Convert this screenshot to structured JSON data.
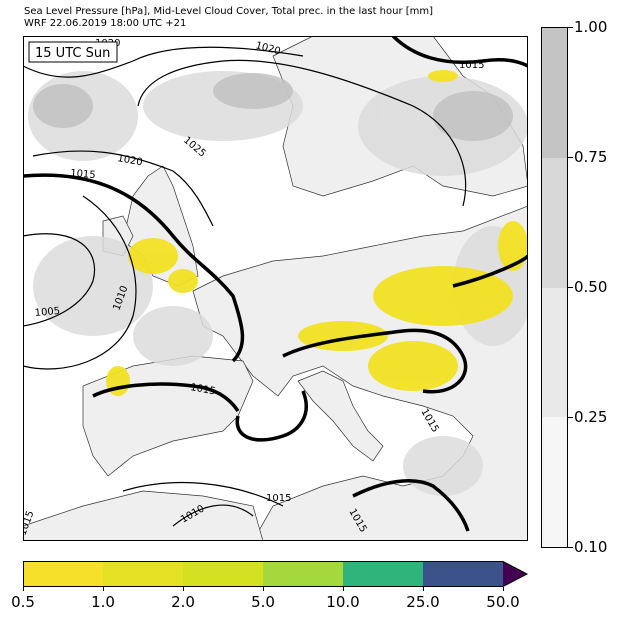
{
  "header": {
    "line1": "Sea Level Pressure [hPa], Mid-Level Cloud Cover, Total prec. in the last hour [mm]",
    "line2": "WRF 22.06.2019 18:00 UTC +21"
  },
  "map": {
    "time_label": "15 UTC Sun",
    "isobar_labels": [
      "1020",
      "1015",
      "1020",
      "1025",
      "1015",
      "1010",
      "1005",
      "1015",
      "1015",
      "1010",
      "1015",
      "1015",
      "1015",
      "1020"
    ],
    "colors": {
      "ocean": "#ffffff",
      "land": "#efefef",
      "cloud_light": "#dcdcdc",
      "cloud_dark": "#bfbfbf",
      "precip": "#f2e224",
      "isobar": "#000000",
      "coast": "#000000"
    }
  },
  "cloud_colorbar": {
    "labels": [
      "1.00",
      "0.75",
      "0.50",
      "0.25",
      "0.10"
    ],
    "colors": [
      "#c4c4c4",
      "#d8d8d8",
      "#e9e9e9",
      "#f6f6f6"
    ]
  },
  "precip_colorbar": {
    "labels": [
      "0.5",
      "1.0",
      "2.0",
      "5.0",
      "10.0",
      "25.0",
      "50.0"
    ],
    "colors": [
      "#f7e02a",
      "#e4e023",
      "#d4e022",
      "#a4d83c",
      "#2fb47c",
      "#3b528b",
      "#440154"
    ]
  }
}
